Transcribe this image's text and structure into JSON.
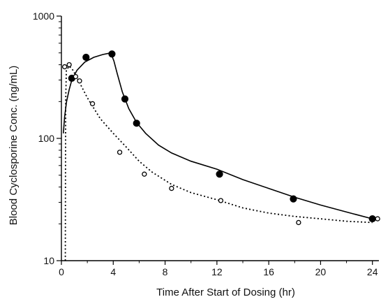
{
  "chart_data": {
    "type": "scatter",
    "xlabel": "Time After Start of Dosing (hr)",
    "ylabel": "Blood Cyclosporine Conc. (ng/mL)",
    "xlim": [
      0,
      24.5
    ],
    "ylim": [
      10,
      1000
    ],
    "yscale": "log",
    "x_ticks": [
      0,
      4,
      8,
      12,
      16,
      20,
      24
    ],
    "y_ticks": [
      10,
      100,
      1000
    ],
    "grid": false,
    "series": [
      {
        "marker": "filled-circle",
        "line_style": "solid",
        "color": "#000000",
        "points": [
          [
            0.8,
            310
          ],
          [
            1.9,
            460
          ],
          [
            3.9,
            490
          ],
          [
            4.9,
            210
          ],
          [
            5.8,
            133
          ],
          [
            12.2,
            51
          ],
          [
            17.9,
            32
          ],
          [
            24.0,
            22
          ]
        ],
        "fit_curve": [
          [
            0.15,
            110
          ],
          [
            0.25,
            150
          ],
          [
            0.4,
            200
          ],
          [
            0.6,
            250
          ],
          [
            0.8,
            300
          ],
          [
            1.2,
            360
          ],
          [
            1.8,
            420
          ],
          [
            2.5,
            460
          ],
          [
            3.2,
            485
          ],
          [
            3.8,
            500
          ],
          [
            4.05,
            430
          ],
          [
            4.3,
            340
          ],
          [
            4.7,
            240
          ],
          [
            5.2,
            175
          ],
          [
            5.8,
            135
          ],
          [
            6.5,
            110
          ],
          [
            7.5,
            88
          ],
          [
            8.5,
            76
          ],
          [
            10,
            65
          ],
          [
            12,
            56
          ],
          [
            14,
            46
          ],
          [
            16,
            39
          ],
          [
            18,
            33
          ],
          [
            20,
            28.5
          ],
          [
            22,
            25
          ],
          [
            24,
            22
          ]
        ]
      },
      {
        "marker": "open-circle",
        "line_style": "dotted",
        "color": "#000000",
        "points": [
          [
            0.25,
            385
          ],
          [
            0.6,
            400
          ],
          [
            1.1,
            320
          ],
          [
            1.4,
            295
          ],
          [
            2.4,
            192
          ],
          [
            4.5,
            77
          ],
          [
            6.4,
            51
          ],
          [
            8.5,
            39
          ],
          [
            12.3,
            31
          ],
          [
            18.3,
            20.5
          ],
          [
            24.4,
            22
          ]
        ],
        "fit_curve": [
          [
            0.3,
            10
          ],
          [
            0.31,
            40
          ],
          [
            0.33,
            200
          ],
          [
            0.38,
            360
          ],
          [
            0.6,
            390
          ],
          [
            0.9,
            360
          ],
          [
            1.3,
            300
          ],
          [
            2,
            215
          ],
          [
            3,
            145
          ],
          [
            4,
            110
          ],
          [
            5,
            85
          ],
          [
            6,
            65
          ],
          [
            7,
            53
          ],
          [
            8.5,
            42
          ],
          [
            10,
            36
          ],
          [
            12,
            31.5
          ],
          [
            14,
            27
          ],
          [
            16,
            24.5
          ],
          [
            18,
            23
          ],
          [
            20,
            22
          ],
          [
            22,
            21
          ],
          [
            24,
            20.5
          ]
        ]
      }
    ]
  }
}
